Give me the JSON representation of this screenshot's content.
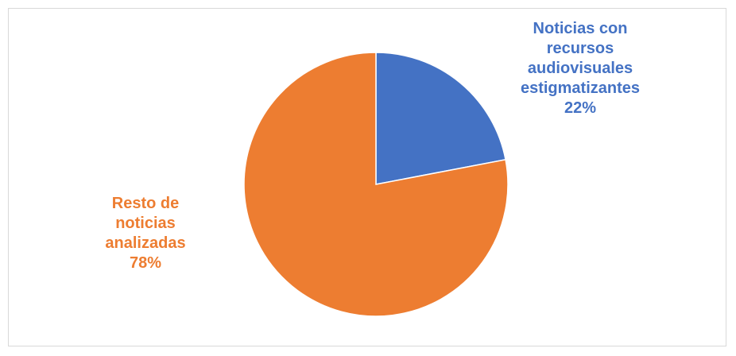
{
  "chart_data": {
    "type": "pie",
    "slices": [
      {
        "label_lines": [
          "Noticias con",
          "recursos",
          "audiovisuales",
          "estigmatizantes"
        ],
        "percent_label": "22%",
        "value": 22,
        "color": "#4472c4"
      },
      {
        "label_lines": [
          "Resto de",
          "noticias",
          "analizadas"
        ],
        "percent_label": "78%",
        "value": 78,
        "color": "#ed7d31"
      }
    ],
    "legend": "none"
  }
}
